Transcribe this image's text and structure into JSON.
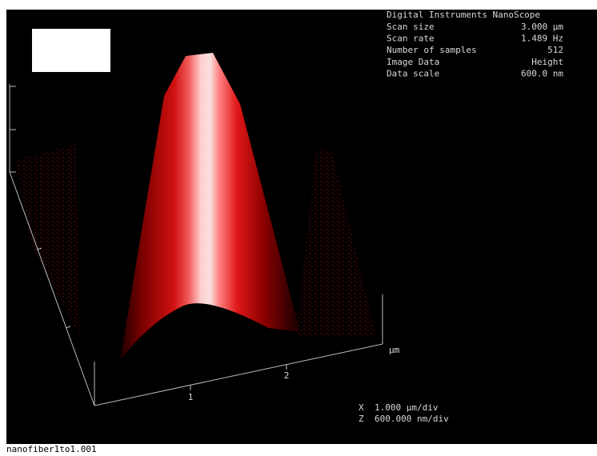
{
  "info": {
    "title": "Digital Instruments NanoScope",
    "rows": [
      [
        "Scan size",
        "3.000 µm"
      ],
      [
        "Scan rate",
        "1.489 Hz"
      ],
      [
        "Number of samples",
        "512"
      ],
      [
        "Image Data",
        "Height"
      ],
      [
        "Data scale",
        "600.0 nm"
      ]
    ]
  },
  "axis": {
    "tick_labels": [
      "1",
      "2"
    ],
    "unit": "µm"
  },
  "scale": [
    [
      "X",
      "1.000 µm/div"
    ],
    [
      "Z",
      "600.000 nm/div"
    ]
  ],
  "footer": {
    "filename": "nanofiber1to1.001"
  }
}
